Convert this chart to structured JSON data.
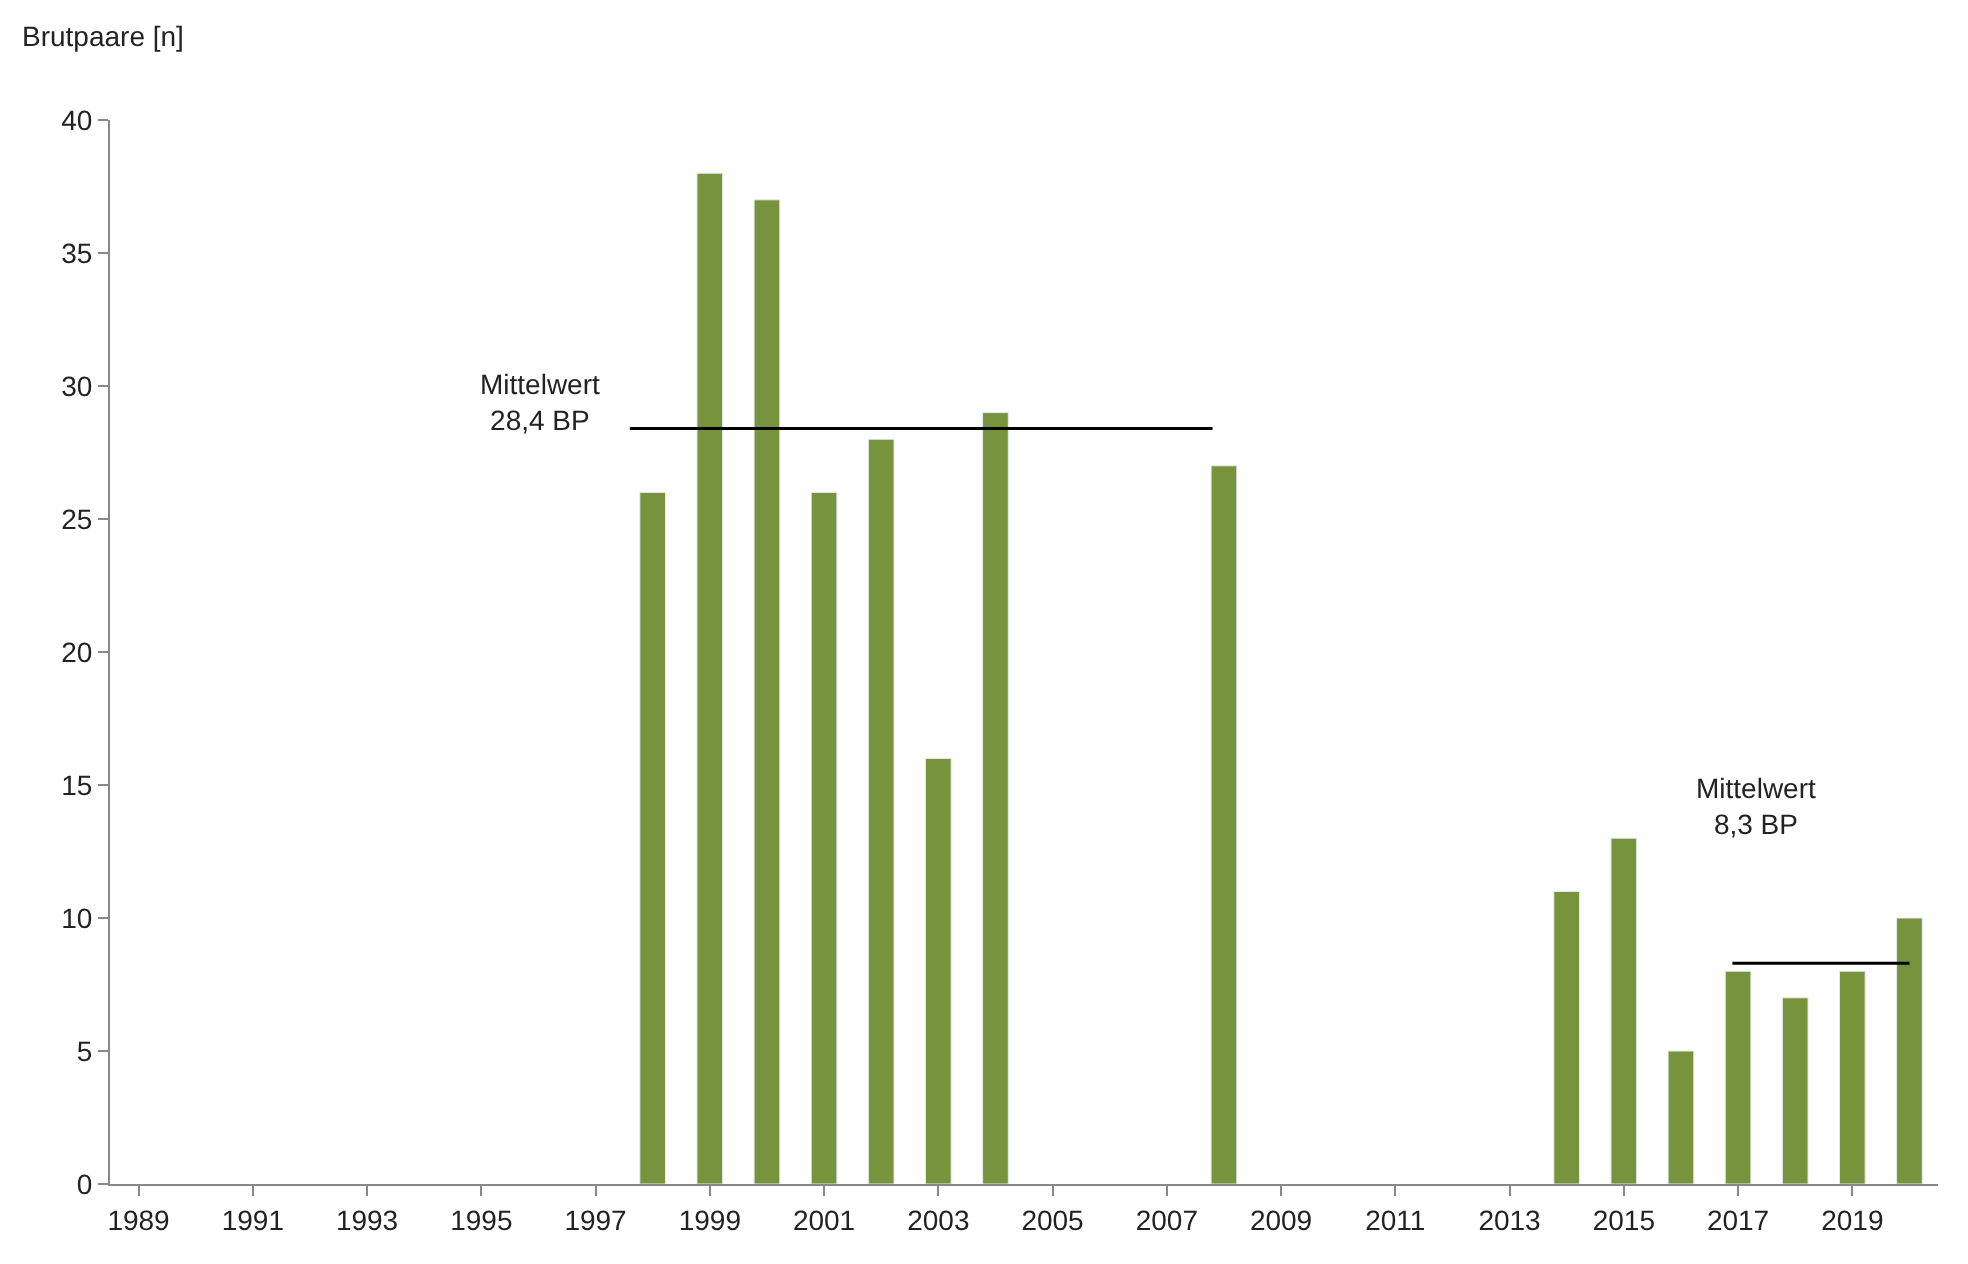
{
  "chart_data": {
    "type": "bar",
    "ylabel": "Brutpaare [n]",
    "x": [
      1998,
      1999,
      2000,
      2001,
      2002,
      2003,
      2004,
      2008,
      2014,
      2015,
      2016,
      2017,
      2018,
      2019,
      2020
    ],
    "series": [
      {
        "color": "#77933c",
        "values": [
          26,
          38,
          37,
          26,
          28,
          16,
          29,
          27,
          11,
          13,
          5,
          8,
          7,
          8,
          10
        ]
      },
      {
        "type": "line",
        "color": "#000000",
        "x": [
          1997.6,
          2007.8
        ],
        "values": [
          28.4,
          28.4
        ]
      },
      {
        "type": "line",
        "color": "#000000",
        "x": [
          2016.9,
          2020.0
        ],
        "values": [
          8.3,
          8.3
        ]
      }
    ],
    "annotations": [
      "Mittelwert\n28,4 BP",
      "Mittelwert\n8,3 BP"
    ],
    "xlim": [
      1988.5,
      2020.5
    ],
    "xticks": [
      1989,
      1991,
      1993,
      1995,
      1997,
      1999,
      2001,
      2003,
      2005,
      2007,
      2009,
      2011,
      2013,
      2015,
      2017,
      2019
    ],
    "ylim": [
      0,
      40
    ],
    "yticks": [
      0,
      5,
      10,
      15,
      20,
      25,
      30,
      35,
      40
    ],
    "marker": "none",
    "line_style": "solid"
  }
}
